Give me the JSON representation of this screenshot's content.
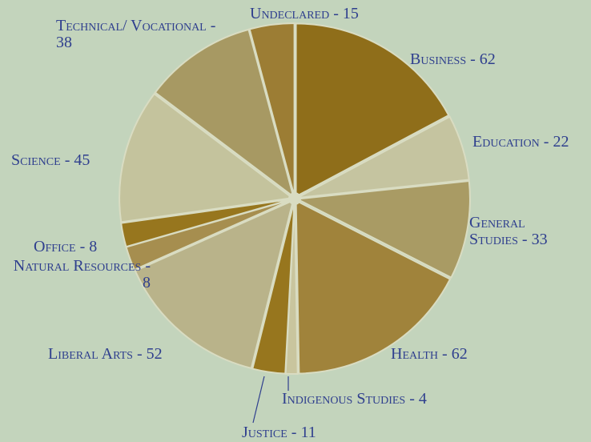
{
  "chart_data": {
    "type": "pie",
    "categories": [
      "Business",
      "Education",
      "General Studies",
      "Health",
      "Indigenous Studies",
      "Justice",
      "Liberal Arts",
      "Natural Resources",
      "Office",
      "Science",
      "Technical/ Vocational",
      "Undeclared"
    ],
    "values": [
      62,
      22,
      33,
      62,
      4,
      11,
      52,
      8,
      8,
      45,
      38,
      15
    ],
    "value_labels": [
      "- 62",
      "- 22",
      "- 33",
      "- 62",
      "- 4",
      "- 11",
      "- 52",
      "- 8",
      "- 8",
      "- 45",
      "- 38",
      "- 15"
    ],
    "colors": [
      "#8f6e1a",
      "#c5c4a0",
      "#a99b64",
      "#a0833b",
      "#c9c59e",
      "#97761e",
      "#b9b38a",
      "#a68e4f",
      "#97761e",
      "#c4c39d",
      "#a79963",
      "#9c7d34"
    ]
  }
}
